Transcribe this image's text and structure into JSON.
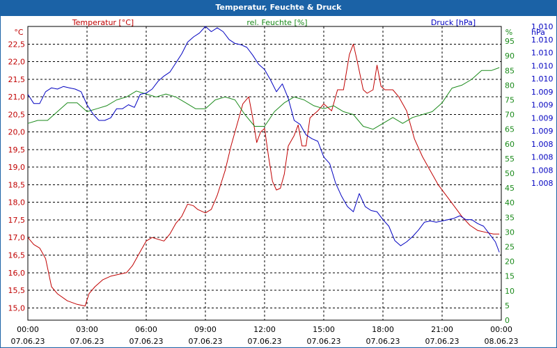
{
  "chart_data": {
    "type": "line",
    "title": "Temperatur, Feuchte & Druck",
    "colors": {
      "temp": "#c00000",
      "hum": "#1a8a1a",
      "press": "#0000c0",
      "border": "#1b62a6",
      "title_bg": "#1b62a6"
    },
    "temp_axis": {
      "unit": "°C",
      "label": "Temperatur [°C]",
      "min": 14.65,
      "max": 23.0,
      "ticks": [
        15.0,
        15.5,
        16.0,
        16.5,
        17.0,
        17.5,
        18.0,
        18.5,
        19.0,
        19.5,
        20.0,
        20.5,
        21.0,
        21.5,
        22.0,
        22.5
      ],
      "tick_labels": [
        "15,0",
        "15,5",
        "16,0",
        "16,5",
        "17,0",
        "17,5",
        "18,0",
        "18,5",
        "19,0",
        "19,5",
        "20,0",
        "20,5",
        "21,0",
        "21,5",
        "22,0",
        "22,5"
      ]
    },
    "hum_axis": {
      "unit": "%",
      "label": "rel. Feuchte [%]",
      "min": 0,
      "max": 100,
      "ticks": [
        0,
        5,
        10,
        15,
        20,
        25,
        30,
        35,
        40,
        45,
        50,
        55,
        60,
        65,
        70,
        75,
        80,
        85,
        90,
        95
      ],
      "tick_labels": [
        "0",
        "5",
        "10",
        "15",
        "20",
        "25",
        "30",
        "35",
        "40",
        "45",
        "50",
        "55",
        "60",
        "65",
        "70",
        "75",
        "80",
        "85",
        "90",
        "95"
      ]
    },
    "press_axis": {
      "unit": "hPa",
      "label": "Druck [hPa]",
      "min": 1007.75,
      "max": 1010.0,
      "ticks": [
        1010.0,
        1009.9,
        1009.8,
        1009.7,
        1009.6,
        1009.5,
        1009.4,
        1009.3,
        1009.2,
        1009.1,
        1009.0,
        1008.9,
        1008.8
      ],
      "tick_labels": [
        "1.010",
        "1.010",
        "1.010",
        "1.010",
        "1.010",
        "1.009",
        "1.009",
        "1.009",
        "1.009",
        "1.008",
        "1.008",
        "1.008",
        "1.008"
      ]
    },
    "x_axis": {
      "min": 0,
      "max": 24,
      "ticks": [
        0,
        3,
        6,
        9,
        12,
        15,
        18,
        21,
        24
      ],
      "time_labels": [
        "00:00",
        "03:00",
        "06:00",
        "09:00",
        "12:00",
        "15:00",
        "18:00",
        "21:00",
        "00:00"
      ],
      "date_labels": [
        "07.06.23",
        "07.06.23",
        "07.06.23",
        "07.06.23",
        "07.06.23",
        "07.06.23",
        "07.06.23",
        "07.06.23",
        "08.06.23"
      ]
    },
    "series": [
      {
        "name": "Temperatur [°C]",
        "key": "temp",
        "x": [
          0,
          0.3,
          0.6,
          0.9,
          1.2,
          1.5,
          2.0,
          2.5,
          2.9,
          3.1,
          3.4,
          3.8,
          4.2,
          4.6,
          5.0,
          5.3,
          5.7,
          6.0,
          6.3,
          6.6,
          6.9,
          7.2,
          7.5,
          7.8,
          8.1,
          8.4,
          8.6,
          9.0,
          9.3,
          9.6,
          10.0,
          10.3,
          10.6,
          10.9,
          11.2,
          11.4,
          11.6,
          11.8,
          12.0,
          12.2,
          12.4,
          12.6,
          12.8,
          13.0,
          13.2,
          13.5,
          13.7,
          13.9,
          14.1,
          14.3,
          14.5,
          14.7,
          15.0,
          15.2,
          15.4,
          15.7,
          16.0,
          16.3,
          16.5,
          16.7,
          17.0,
          17.2,
          17.5,
          17.7,
          17.9,
          18.1,
          18.3,
          18.5,
          18.8,
          19.2,
          19.6,
          20.0,
          20.4,
          20.8,
          21.2,
          21.6,
          22.0,
          22.4,
          22.8,
          23.2,
          23.6,
          23.9
        ],
        "values": [
          17.0,
          16.8,
          16.7,
          16.4,
          15.6,
          15.4,
          15.2,
          15.1,
          15.05,
          15.4,
          15.6,
          15.8,
          15.9,
          15.95,
          16.0,
          16.2,
          16.6,
          16.9,
          17.0,
          16.95,
          16.9,
          17.1,
          17.4,
          17.6,
          17.95,
          17.9,
          17.8,
          17.7,
          17.8,
          18.2,
          18.9,
          19.6,
          20.2,
          20.8,
          21.0,
          20.4,
          19.7,
          20.0,
          20.1,
          19.3,
          18.6,
          18.35,
          18.4,
          18.8,
          19.6,
          19.9,
          20.2,
          19.6,
          19.6,
          20.4,
          20.5,
          20.6,
          20.8,
          20.7,
          20.6,
          21.2,
          21.2,
          22.2,
          22.5,
          22.0,
          21.2,
          21.1,
          21.2,
          21.9,
          21.3,
          21.2,
          21.2,
          21.2,
          21.0,
          20.6,
          19.8,
          19.3,
          18.9,
          18.5,
          18.2,
          17.9,
          17.6,
          17.35,
          17.2,
          17.15,
          17.1,
          17.1
        ]
      },
      {
        "name": "rel. Feuchte [%]",
        "key": "hum",
        "x": [
          0,
          0.5,
          1.0,
          1.5,
          2.0,
          2.5,
          3.0,
          3.5,
          4.0,
          4.5,
          5.0,
          5.5,
          6.0,
          6.5,
          7.0,
          7.5,
          8.0,
          8.5,
          9.0,
          9.5,
          10.0,
          10.5,
          11.0,
          11.5,
          12.0,
          12.5,
          13.0,
          13.5,
          14.0,
          14.5,
          15.0,
          15.5,
          16.0,
          16.5,
          17.0,
          17.5,
          18.0,
          18.5,
          19.0,
          19.5,
          20.0,
          20.5,
          21.0,
          21.5,
          22.0,
          22.5,
          23.0,
          23.5,
          23.9
        ],
        "values": [
          67,
          68,
          68,
          71,
          74,
          74,
          71,
          72,
          73,
          75,
          76,
          78,
          77,
          76,
          77,
          76,
          74,
          72,
          72,
          75,
          76,
          75,
          70,
          66,
          66,
          71,
          74,
          76,
          75,
          73,
          72,
          73,
          71,
          70,
          66,
          65,
          67,
          69,
          67,
          69,
          70,
          71,
          74,
          79,
          80,
          82,
          85,
          85,
          86
        ]
      },
      {
        "name": "Druck [hPa]",
        "key": "press",
        "x": [
          0,
          0.3,
          0.6,
          0.9,
          1.2,
          1.5,
          1.8,
          2.1,
          2.4,
          2.7,
          3.0,
          3.3,
          3.6,
          3.9,
          4.2,
          4.5,
          4.8,
          5.1,
          5.4,
          5.7,
          6.0,
          6.3,
          6.6,
          6.9,
          7.2,
          7.5,
          7.8,
          8.1,
          8.4,
          8.7,
          9.0,
          9.3,
          9.6,
          9.9,
          10.2,
          10.5,
          10.8,
          11.1,
          11.4,
          11.7,
          12.0,
          12.3,
          12.6,
          12.9,
          13.2,
          13.5,
          13.8,
          14.1,
          14.4,
          14.7,
          15.0,
          15.3,
          15.6,
          15.9,
          16.2,
          16.5,
          16.8,
          17.1,
          17.4,
          17.7,
          18.0,
          18.3,
          18.6,
          18.9,
          19.2,
          19.5,
          19.8,
          20.1,
          20.4,
          20.7,
          21.0,
          21.3,
          21.6,
          21.9,
          22.2,
          22.5,
          22.8,
          23.1,
          23.4,
          23.7,
          23.9
        ],
        "values": [
          1009.48,
          1009.41,
          1009.41,
          1009.5,
          1009.53,
          1009.52,
          1009.54,
          1009.53,
          1009.52,
          1009.5,
          1009.4,
          1009.33,
          1009.28,
          1009.28,
          1009.3,
          1009.37,
          1009.37,
          1009.4,
          1009.38,
          1009.48,
          1009.49,
          1009.52,
          1009.58,
          1009.62,
          1009.65,
          1009.72,
          1009.79,
          1009.88,
          1009.92,
          1009.95,
          1010.0,
          1009.96,
          1009.99,
          1009.96,
          1009.9,
          1009.87,
          1009.86,
          1009.84,
          1009.78,
          1009.71,
          1009.67,
          1009.59,
          1009.5,
          1009.56,
          1009.45,
          1009.28,
          1009.25,
          1009.17,
          1009.14,
          1009.12,
          1009.0,
          1008.95,
          1008.8,
          1008.7,
          1008.62,
          1008.58,
          1008.72,
          1008.62,
          1008.59,
          1008.58,
          1008.52,
          1008.47,
          1008.36,
          1008.32,
          1008.35,
          1008.39,
          1008.44,
          1008.5,
          1008.51,
          1008.5,
          1008.51,
          1008.52,
          1008.53,
          1008.55,
          1008.52,
          1008.52,
          1008.49,
          1008.47,
          1008.41,
          1008.35,
          1008.27
        ]
      }
    ]
  }
}
